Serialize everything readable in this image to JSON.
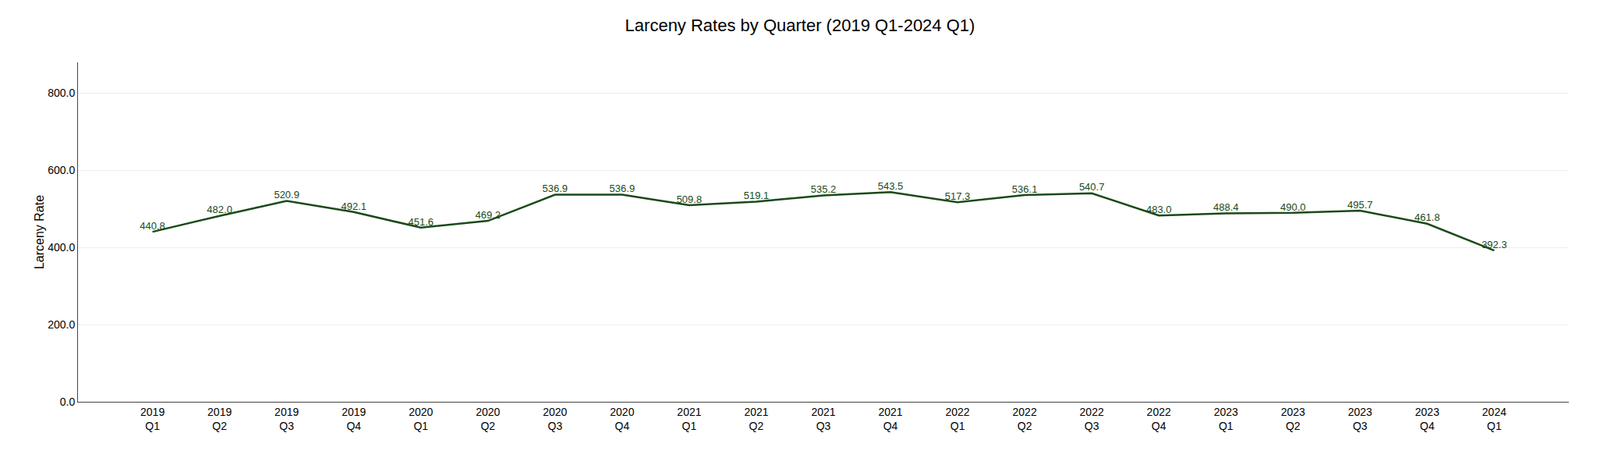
{
  "chart_data": {
    "type": "line",
    "title": "Larceny Rates by Quarter (2019 Q1-2024 Q1)",
    "ylabel": "Larceny Rate",
    "categories": [
      "2019\nQ1",
      "2019\nQ2",
      "2019\nQ3",
      "2019\nQ4",
      "2020\nQ1",
      "2020\nQ2",
      "2020\nQ3",
      "2020\nQ4",
      "2021\nQ1",
      "2021\nQ2",
      "2021\nQ3",
      "2021\nQ4",
      "2022\nQ1",
      "2022\nQ2",
      "2022\nQ3",
      "2022\nQ4",
      "2023\nQ1",
      "2023\nQ2",
      "2023\nQ3",
      "2023\nQ4",
      "2024\nQ1"
    ],
    "values": [
      440.8,
      482.0,
      520.9,
      492.1,
      451.6,
      469.2,
      536.9,
      536.9,
      509.8,
      519.1,
      535.2,
      543.5,
      517.3,
      536.1,
      540.7,
      483.0,
      488.4,
      490.0,
      495.7,
      461.8,
      392.3
    ],
    "value_labels": [
      "440.8",
      "482.0",
      "520.9",
      "492.1",
      "451.6",
      "469.2",
      "536.9",
      "536.9",
      "509.8",
      "519.1",
      "535.2",
      "543.5",
      "517.3",
      "536.1",
      "540.7",
      "483.0",
      "488.4",
      "490.0",
      "495.7",
      "461.8",
      "392.3"
    ],
    "color": "#1a4a1a",
    "ylim": [
      0,
      880
    ],
    "yticks": [
      {
        "value": 0,
        "label": "0.0"
      },
      {
        "value": 200,
        "label": "200.0"
      },
      {
        "value": 400,
        "label": "400.0"
      },
      {
        "value": 600,
        "label": "600.0"
      },
      {
        "value": 800,
        "label": "800.0"
      }
    ],
    "grid": true,
    "data_labels": true
  }
}
